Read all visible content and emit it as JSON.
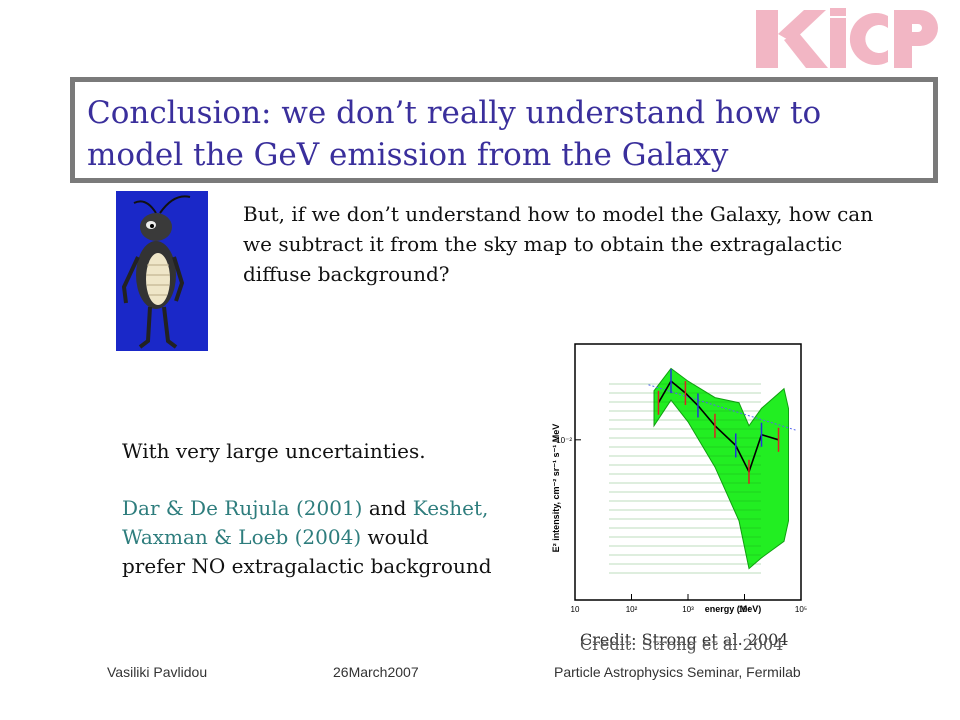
{
  "logo": {
    "text": "KICP"
  },
  "title": {
    "line1": "Conclusion: we don’t really understand how to",
    "line2": "model the GeV emission from the Galaxy"
  },
  "body": {
    "question": "But, if we don’t understand how to model the Galaxy, how can we subtract it from the sky map to obtain the extragalactic diffuse background?",
    "uncertainties": "With very large uncertainties.",
    "dar_cite1": "Dar & De Rujula (2001)",
    "dar_and": " and ",
    "dar_cite2": "Keshet, Waxman & Loeb (2004)",
    "dar_rest": " would prefer NO extragalactic background"
  },
  "chart_data": {
    "type": "line",
    "xlabel": "energy (MeV)",
    "ylabel": "E² intensity, cm⁻² sr⁻¹ s⁻¹ MeV",
    "xscale": "log",
    "yscale": "log",
    "xlim": [
      10,
      100000
    ],
    "x_ticks": [
      "10",
      "10²",
      "10³",
      "10⁴",
      "10⁵"
    ],
    "y_ticks": [
      "10⁻²"
    ],
    "series": [
      {
        "name": "",
        "color": "#000000",
        "points": [
          [
            300,
            0.02
          ],
          [
            500,
            0.03
          ],
          [
            900,
            0.024
          ],
          [
            1500,
            0.019
          ],
          [
            3000,
            0.013
          ],
          [
            7000,
            0.009
          ],
          [
            12000,
            0.0055
          ],
          [
            20000,
            0.011
          ],
          [
            40000,
            0.01
          ]
        ]
      }
    ],
    "band": {
      "color": "#22ee22",
      "upper": [
        [
          250,
          0.025
        ],
        [
          500,
          0.038
        ],
        [
          1000,
          0.03
        ],
        [
          3000,
          0.022
        ],
        [
          8000,
          0.02
        ],
        [
          12000,
          0.013
        ],
        [
          20000,
          0.018
        ],
        [
          50000,
          0.026
        ],
        [
          60000,
          0.018
        ]
      ],
      "lower": [
        [
          250,
          0.013
        ],
        [
          500,
          0.021
        ],
        [
          1000,
          0.014
        ],
        [
          3000,
          0.006
        ],
        [
          8000,
          0.0022
        ],
        [
          12000,
          0.0009
        ],
        [
          20000,
          0.0011
        ],
        [
          50000,
          0.0015
        ],
        [
          60000,
          0.0022
        ]
      ]
    },
    "trend_line": {
      "color": "#5566ee",
      "points": [
        [
          200,
          0.028
        ],
        [
          80000,
          0.012
        ]
      ]
    }
  },
  "credit": {
    "text": "Credit: Strong et al. 2004",
    "ghost": "Credit: Strong et al 2004"
  },
  "footer": {
    "author": "Vasiliki Pavlidou",
    "date": "26March2007",
    "venue": "Particle Astrophysics Seminar, Fermilab"
  }
}
